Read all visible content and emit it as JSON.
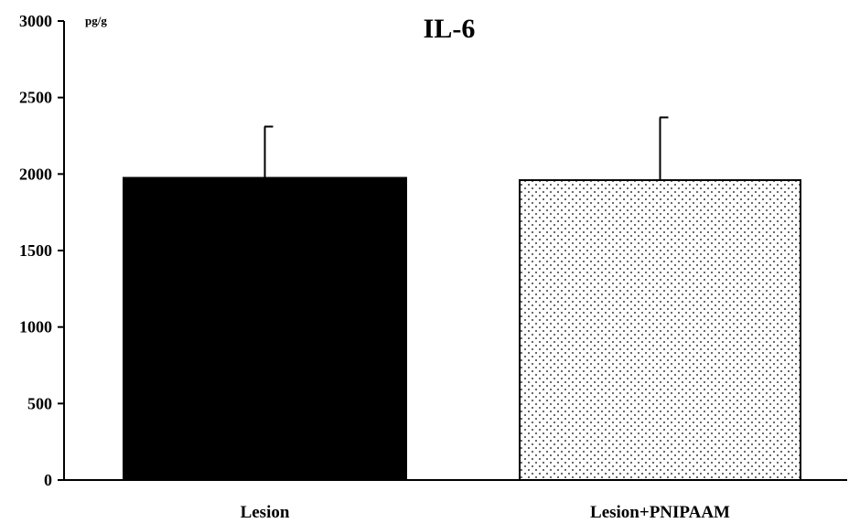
{
  "chart_data": {
    "type": "bar",
    "title": "IL-6",
    "ylabel": "pg/g",
    "xlabel": "",
    "categories": [
      "Lesion",
      "Lesion+PNIPAAM"
    ],
    "values": [
      1975,
      1960
    ],
    "error_upper": [
      2310,
      2370
    ],
    "ylim": [
      0,
      3000
    ],
    "yticks": [
      0,
      500,
      1000,
      1500,
      2000,
      2500,
      3000
    ],
    "ytick_labels": [
      "0",
      "500",
      "1000",
      "1500",
      "2000",
      "2500",
      "3000"
    ],
    "bar_fills": [
      "solid-black",
      "dotted"
    ],
    "grid": false,
    "legend": "none"
  }
}
